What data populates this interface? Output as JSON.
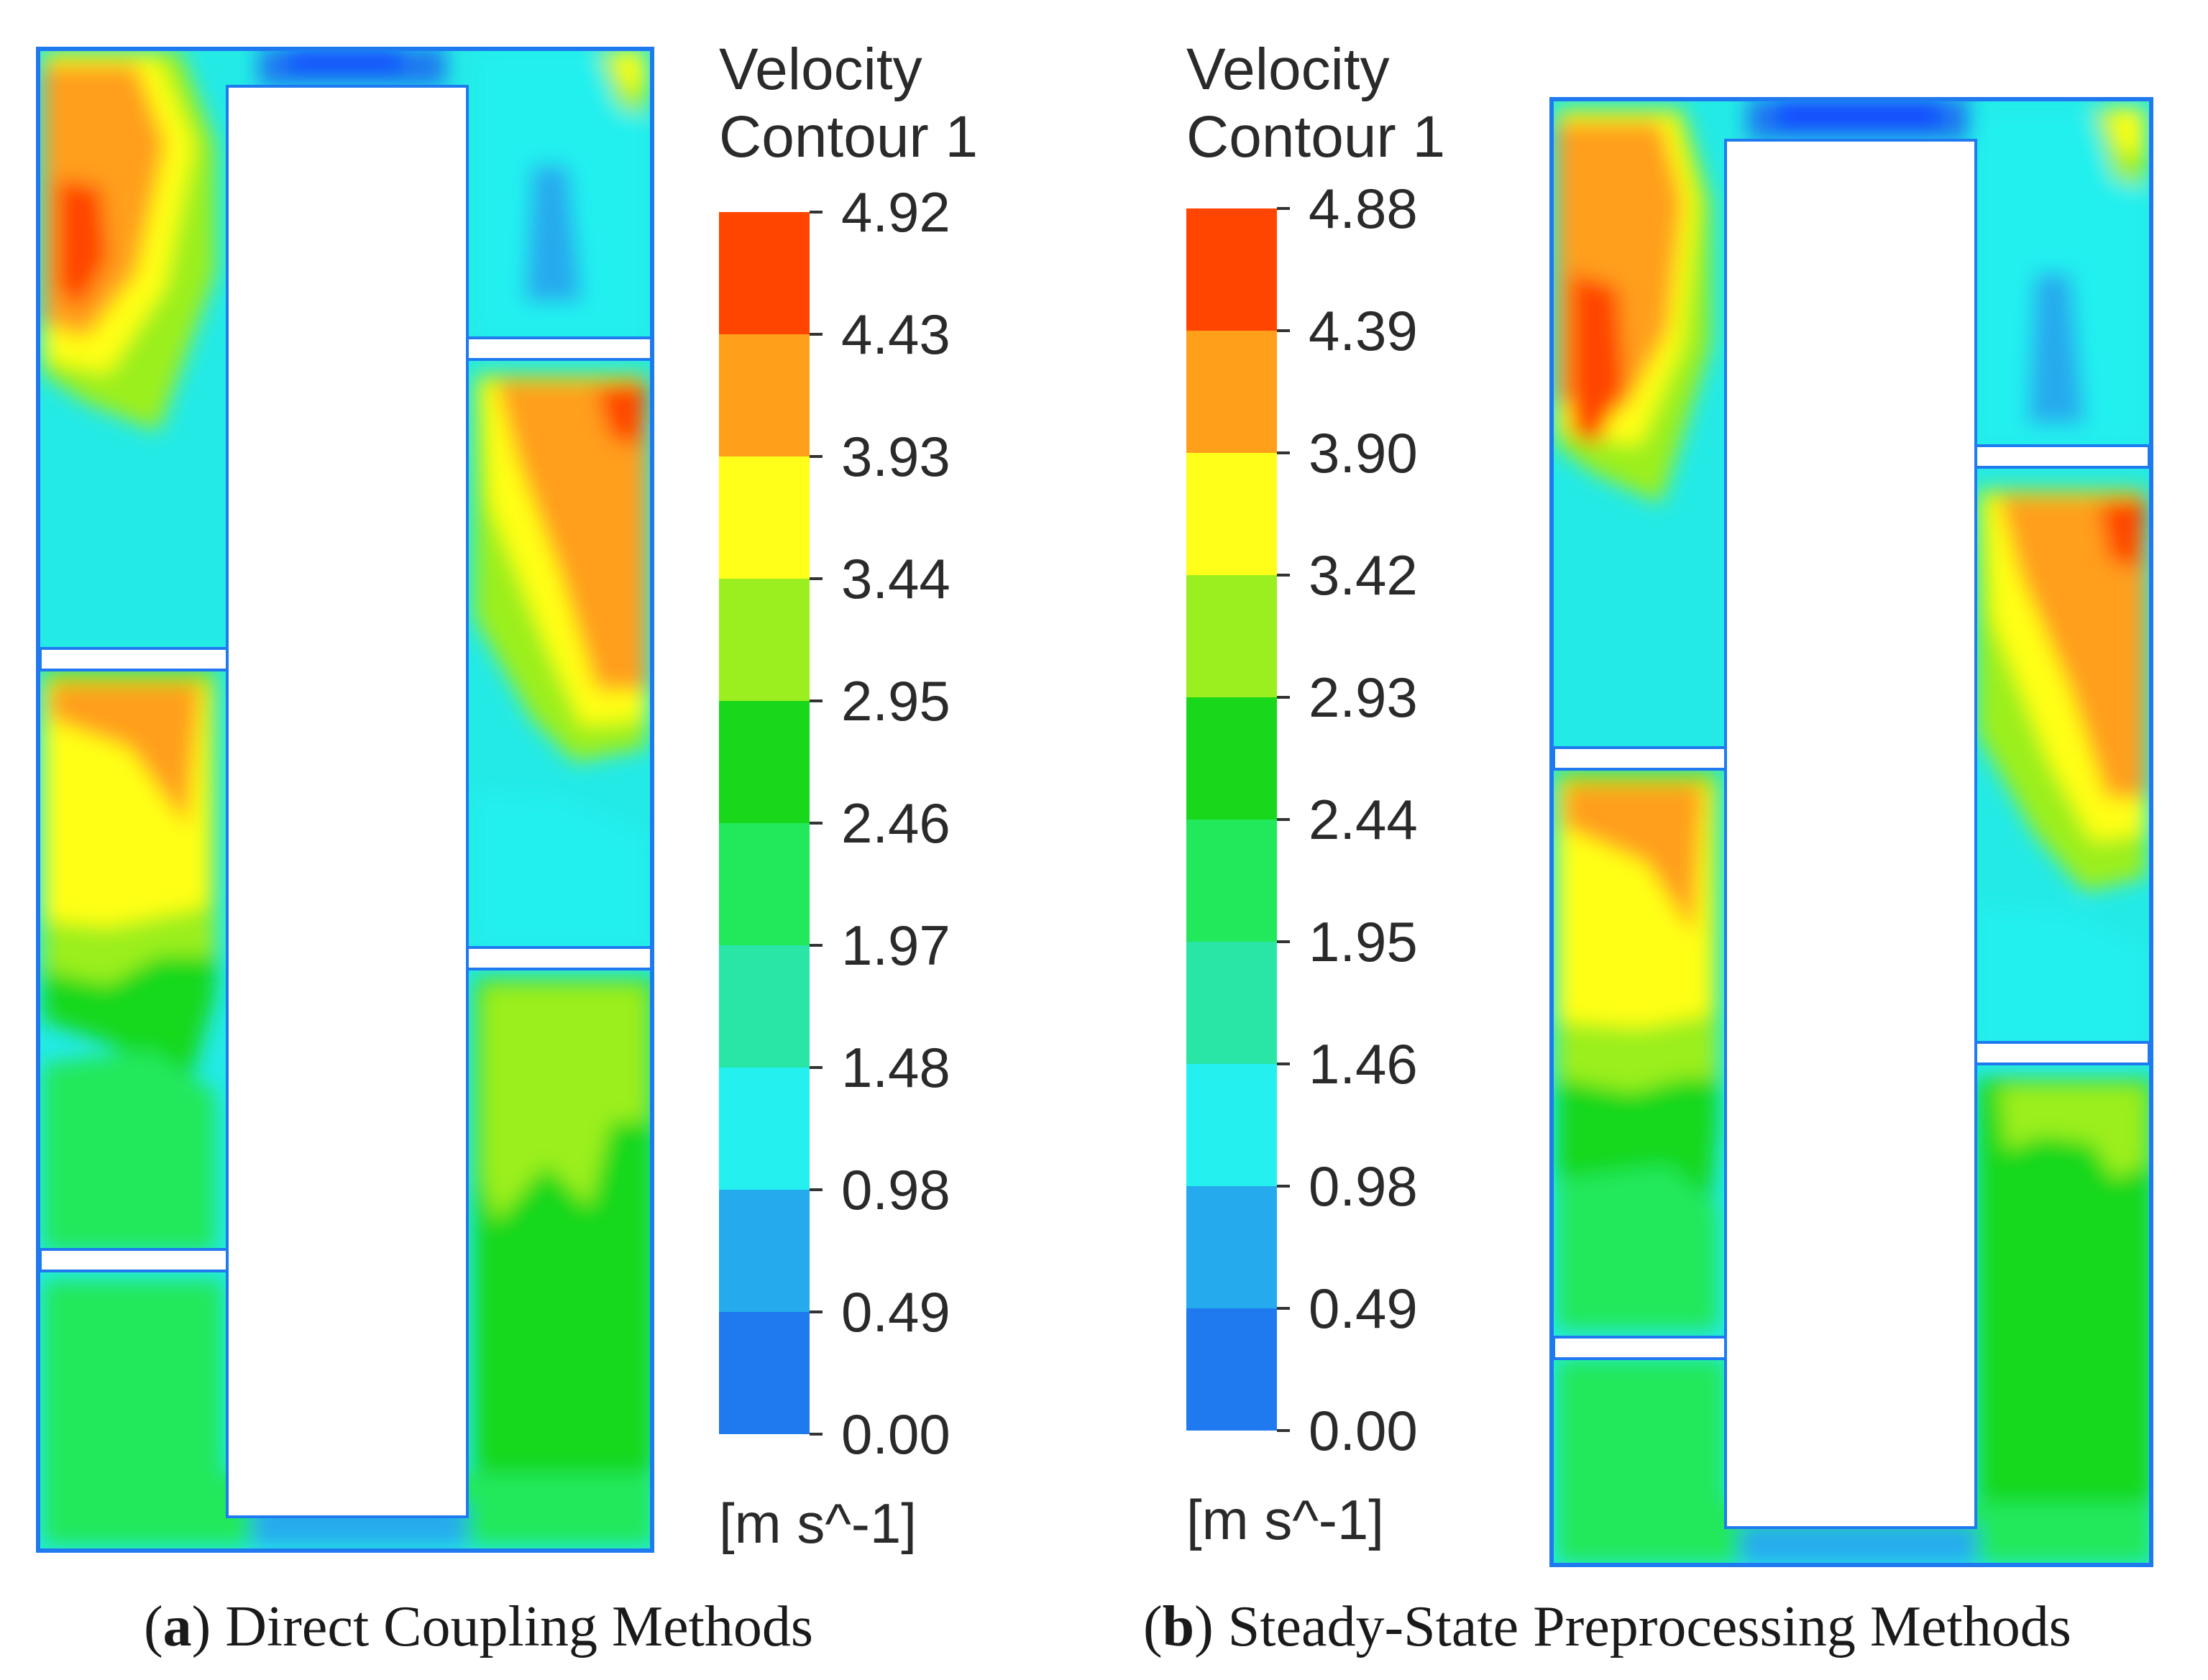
{
  "chart_data": [
    {
      "type": "heatmap",
      "panel": "a",
      "subtitle": "Direct Coupling Methods",
      "legend": {
        "title": [
          "Velocity",
          "Contour 1"
        ],
        "levels": [
          "4.92",
          "4.43",
          "3.93",
          "3.44",
          "2.95",
          "2.46",
          "1.97",
          "1.48",
          "0.98",
          "0.49",
          "0.00"
        ],
        "unit": "[m s^-1]",
        "range": [
          0.0,
          4.92
        ]
      }
    },
    {
      "type": "heatmap",
      "panel": "b",
      "subtitle": "Steady-State Preprocessing Methods",
      "legend": {
        "title": [
          "Velocity",
          "Contour 1"
        ],
        "levels": [
          "4.88",
          "4.39",
          "3.90",
          "3.42",
          "2.93",
          "2.44",
          "1.95",
          "1.46",
          "0.98",
          "0.49",
          "0.00"
        ],
        "unit": "[m s^-1]",
        "range": [
          0.0,
          4.88
        ]
      }
    }
  ],
  "colormap": [
    "#ff4500",
    "#ff9f1a",
    "#ffff19",
    "#9bef1e",
    "#19d81c",
    "#22e85c",
    "#2ae6a6",
    "#23f0ef",
    "#26aaee",
    "#1f7af0",
    "#1448ff"
  ],
  "captions": [
    {
      "label": "a",
      "open": "(",
      "close": ")",
      "text": " Direct Coupling Methods"
    },
    {
      "label": "b",
      "open": "(",
      "close": ")",
      "text": " Steady-State Preprocessing Methods"
    }
  ]
}
